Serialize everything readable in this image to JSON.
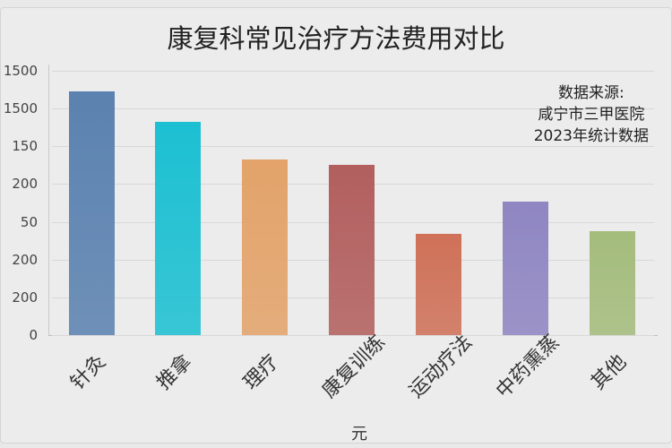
{
  "chart_data": {
    "type": "bar",
    "title": "康复科常见治疗方法费用对比",
    "categories": [
      "针灸",
      "推拿",
      "理疗",
      "康复训练",
      "运动疗法",
      "中药熏蒸",
      "其他"
    ],
    "category_labels_as_rendered": [
      "针灸",
      "推拿",
      "理疗",
      "康复训练",
      "运动疗法",
      "中药熏蒸",
      "其他"
    ],
    "values": [
      1290,
      1130,
      930,
      900,
      535,
      705,
      550
    ],
    "colors": [
      "#5b82b0",
      "#1cc0d2",
      "#e3a36a",
      "#b25f5e",
      "#cf7158",
      "#8f86c2",
      "#a4bc7c"
    ],
    "xlabel": "元",
    "ylabel": "",
    "y_tick_labels": [
      "1500",
      "1500",
      "150",
      "200",
      "50",
      "200",
      "200",
      "0"
    ],
    "ylim": [
      0,
      1400
    ],
    "grid": true,
    "legend": "none",
    "annotation": [
      "数据来源:",
      "咸宁市三甲医院",
      "2023年统计数据"
    ]
  },
  "title": "康复科常见治疗方法费用对比",
  "unit": "元",
  "note": {
    "line1": "数据来源:",
    "line2": "咸宁市三甲医院",
    "line3": "2023年统计数据"
  },
  "yticks": [
    "1500",
    "1500",
    "150",
    "200",
    "50",
    "200",
    "200",
    "0"
  ]
}
